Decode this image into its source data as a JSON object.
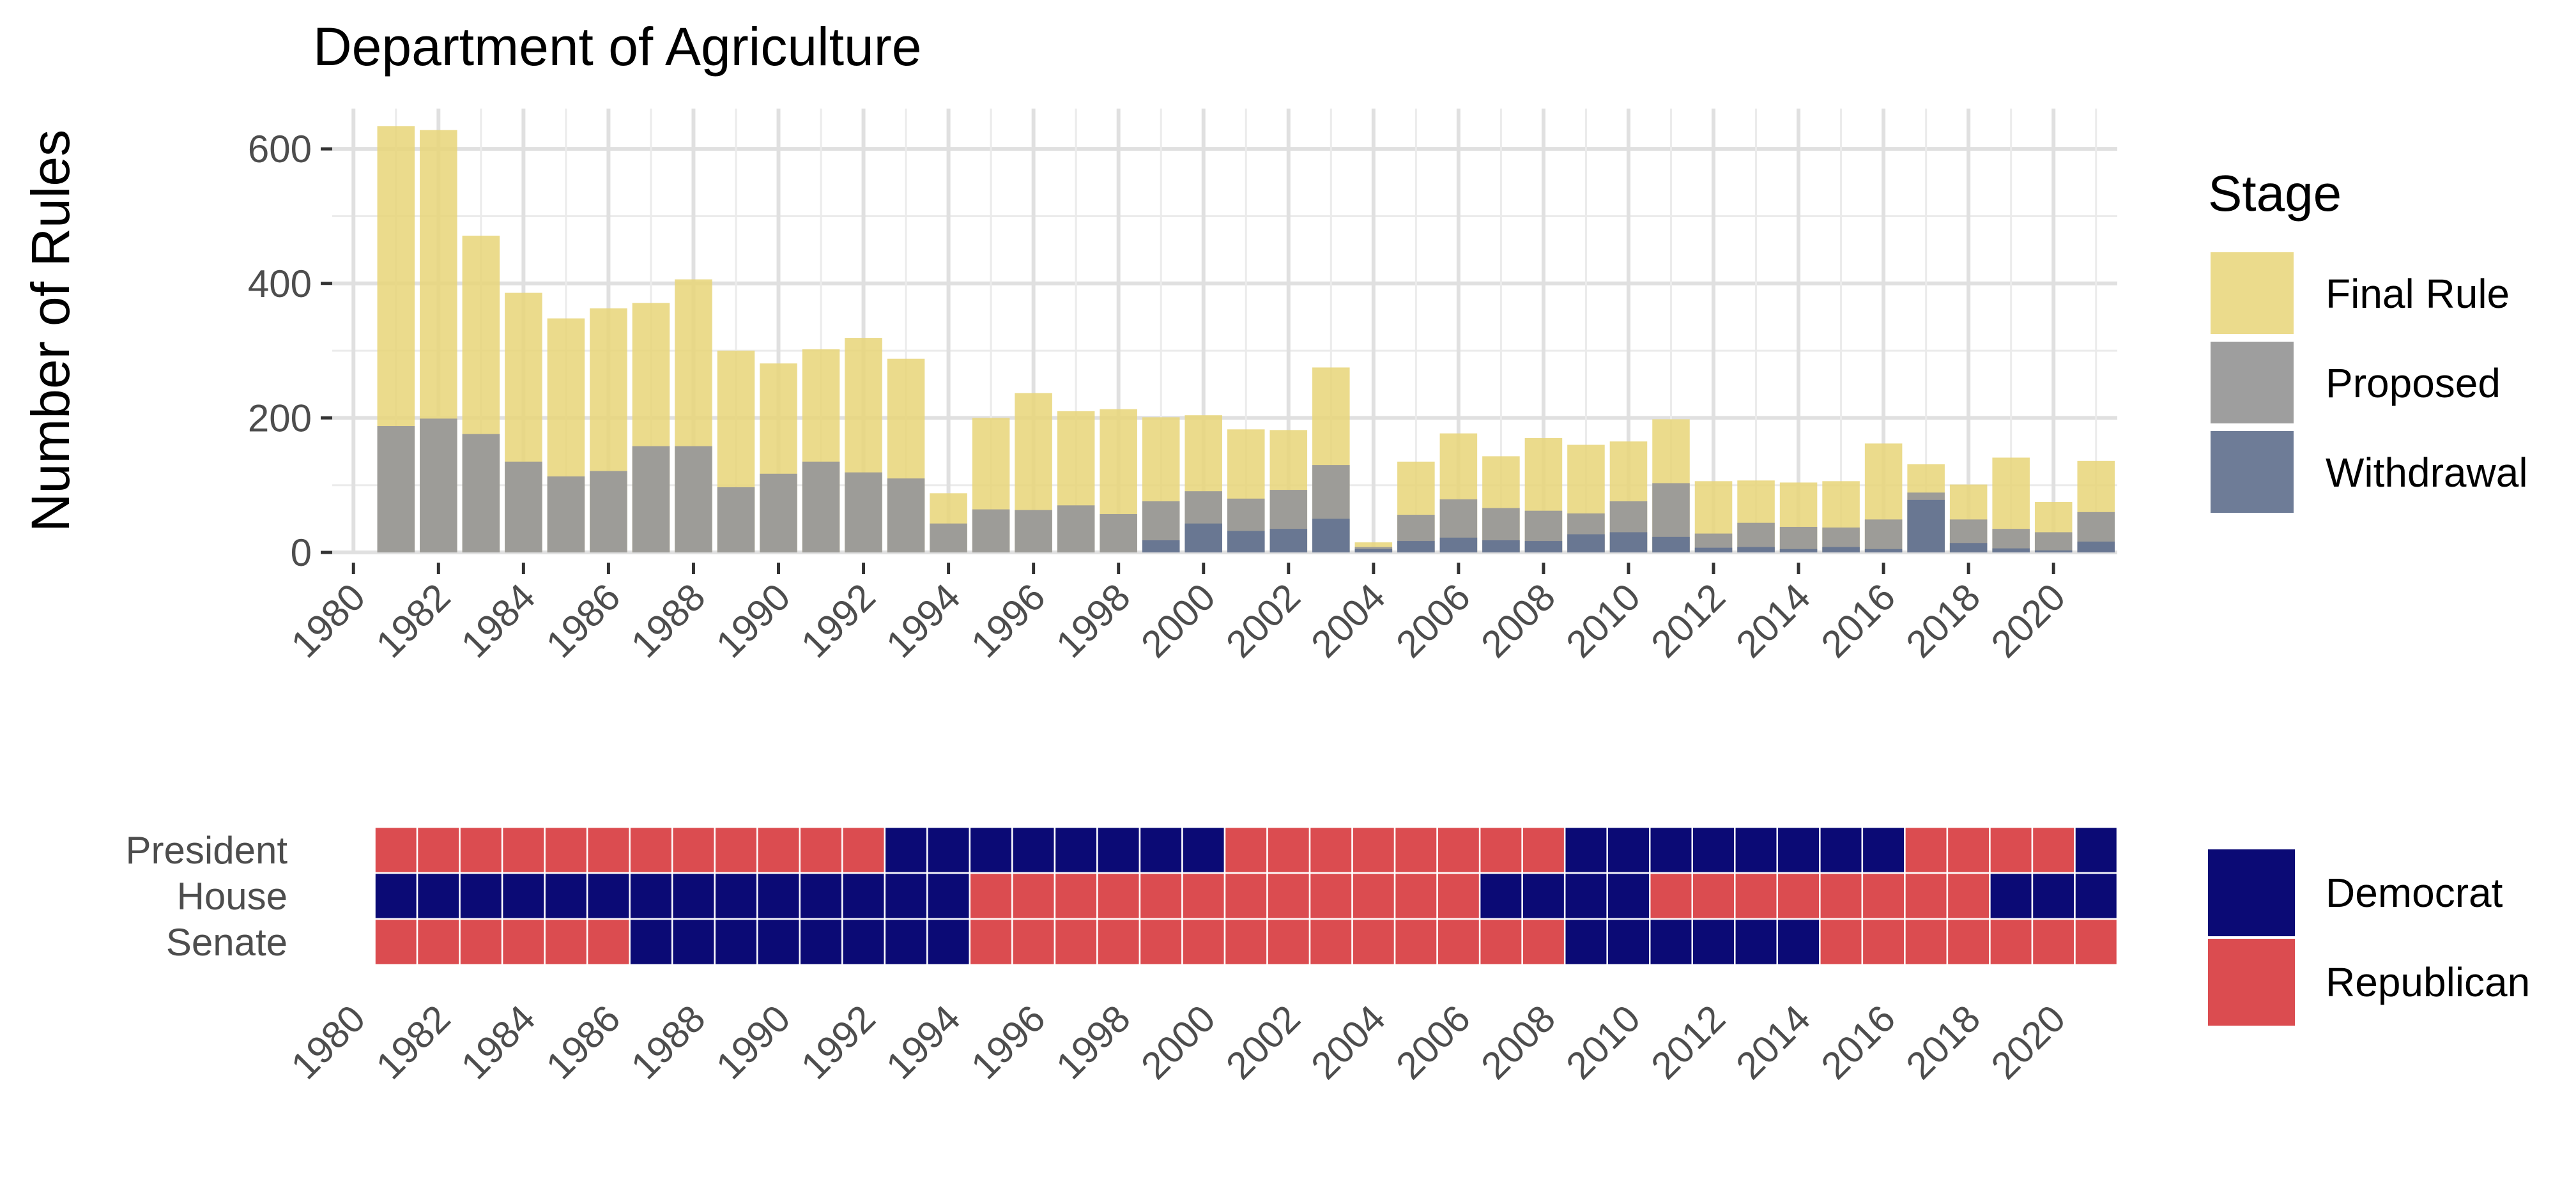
{
  "chart_data": [
    {
      "type": "bar",
      "stacked": true,
      "title": "Department of Agriculture",
      "xlabel": "",
      "ylabel": "Number of Rules",
      "xlim": [
        1979.5,
        2021.5
      ],
      "ylim": [
        0,
        660
      ],
      "x_ticks": [
        1980,
        1982,
        1984,
        1986,
        1988,
        1990,
        1992,
        1994,
        1996,
        1998,
        2000,
        2002,
        2004,
        2006,
        2008,
        2010,
        2012,
        2014,
        2016,
        2018,
        2020
      ],
      "y_ticks": [
        0,
        200,
        400,
        600
      ],
      "grid": true,
      "legend_title": "Stage",
      "legend_position": "right",
      "x": [
        1981,
        1982,
        1983,
        1984,
        1985,
        1986,
        1987,
        1988,
        1989,
        1990,
        1991,
        1992,
        1993,
        1994,
        1995,
        1996,
        1997,
        1998,
        1999,
        2000,
        2001,
        2002,
        2003,
        2004,
        2005,
        2006,
        2007,
        2008,
        2009,
        2010,
        2011,
        2012,
        2013,
        2014,
        2015,
        2016,
        2017,
        2018,
        2019,
        2020,
        2021
      ],
      "series": [
        {
          "name": "Final Rule",
          "color": "#e7d578",
          "totals": [
            634,
            628,
            471,
            386,
            348,
            363,
            371,
            406,
            300,
            281,
            302,
            319,
            288,
            88,
            200,
            237,
            210,
            213,
            201,
            204,
            183,
            182,
            275,
            15,
            135,
            177,
            143,
            170,
            160,
            165,
            198,
            106,
            107,
            104,
            106,
            162,
            131,
            101,
            141,
            75,
            136
          ]
        },
        {
          "name": "Proposed",
          "color": "#999999",
          "totals": [
            188,
            199,
            176,
            135,
            113,
            121,
            158,
            158,
            97,
            117,
            135,
            119,
            110,
            43,
            64,
            63,
            70,
            57,
            76,
            91,
            80,
            93,
            130,
            8,
            56,
            79,
            66,
            62,
            58,
            76,
            103,
            28,
            44,
            38,
            37,
            49,
            89,
            49,
            35,
            30,
            60
          ]
        },
        {
          "name": "Withdrawal",
          "color": "#667591",
          "values": [
            0,
            0,
            0,
            0,
            0,
            0,
            0,
            0,
            0,
            0,
            0,
            0,
            0,
            0,
            0,
            0,
            0,
            0,
            18,
            43,
            32,
            35,
            50,
            5,
            17,
            22,
            18,
            17,
            27,
            30,
            23,
            7,
            8,
            5,
            8,
            5,
            78,
            14,
            6,
            3,
            16
          ]
        }
      ]
    },
    {
      "type": "heatmap",
      "xlim": [
        1979.5,
        2021.5
      ],
      "x_ticks": [
        1980,
        1982,
        1984,
        1986,
        1988,
        1990,
        1992,
        1994,
        1996,
        1998,
        2000,
        2002,
        2004,
        2006,
        2008,
        2010,
        2012,
        2014,
        2016,
        2018,
        2020
      ],
      "rows": [
        "President",
        "House",
        "Senate"
      ],
      "x": [
        1981,
        1982,
        1983,
        1984,
        1985,
        1986,
        1987,
        1988,
        1989,
        1990,
        1991,
        1992,
        1993,
        1994,
        1995,
        1996,
        1997,
        1998,
        1999,
        2000,
        2001,
        2002,
        2003,
        2004,
        2005,
        2006,
        2007,
        2008,
        2009,
        2010,
        2011,
        2012,
        2013,
        2014,
        2015,
        2016,
        2017,
        2018,
        2019,
        2020,
        2021
      ],
      "legend_position": "right",
      "categories": [
        {
          "name": "Democrat",
          "color": "#0b0a75"
        },
        {
          "name": "Republican",
          "color": "#db4c50"
        }
      ],
      "cells": {
        "President": "RRRRRRRRRRRRDDDDDDDDRRRRRRRRDDDDDDDDRRRRD",
        "House": "DDDDDDDDDDDDDDRRRRRRRRRRRRDDDDRRRRRRRRDDD",
        "Senate": "RRRRRRDDDDDDDDRRRRRRRRRRRRRRDDDDDDRRRRRRR"
      }
    }
  ]
}
